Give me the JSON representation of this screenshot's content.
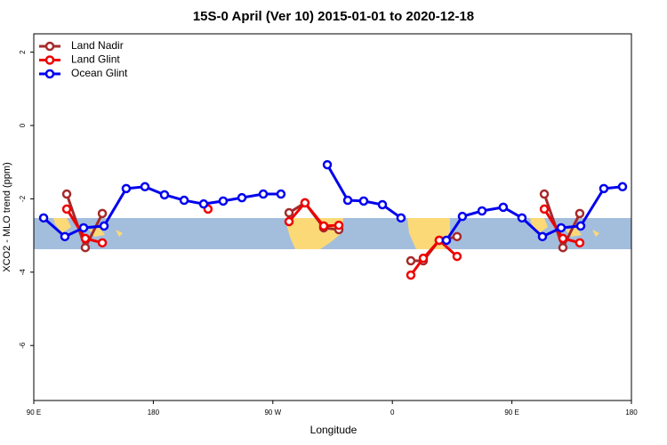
{
  "chart_data": {
    "type": "line",
    "title": "15S-0 April (Ver 10)   2015-01-01 to 2020-12-18",
    "x_label": "Longitude",
    "y_label": "XCO2 - MLO trend (ppm)",
    "xlim": [
      90,
      540
    ],
    "xticks": [
      {
        "value": 90,
        "label": "90 E"
      },
      180,
      {
        "value": 270,
        "label": "90 W"
      },
      {
        "value": 360,
        "label": "0"
      },
      {
        "value": 450,
        "label": "90 E"
      },
      {
        "value": 540,
        "label": "180"
      }
    ],
    "ylim": [
      -7.5,
      2.5
    ],
    "yticks": [
      2,
      0,
      -2,
      -4,
      -6
    ],
    "legend": "top-left",
    "series": [
      {
        "name": "Land Nadir",
        "color": "#a52a2a",
        "x": [
          114.8,
          128.8,
          141.6,
          null,
          282.2,
          294.2,
          308.3,
          319.7,
          null,
          373.9,
          383.3,
          395.3,
          408.7,
          null,
          474.4,
          488.4,
          501.1
        ],
        "values": [
          -1.87,
          -3.33,
          -2.4,
          null,
          -2.38,
          -2.11,
          -2.79,
          -2.84,
          null,
          -3.69,
          -3.69,
          -3.13,
          -3.03,
          null,
          -1.87,
          -3.33,
          -2.4
        ]
      },
      {
        "name": "Land Glint",
        "color": "#ee0000",
        "x": [
          114.8,
          128.8,
          141.6,
          null,
          221.2,
          null,
          282.2,
          294.2,
          308.3,
          319.7,
          null,
          373.9,
          383.3,
          395.3,
          408.7,
          null,
          474.4,
          488.4,
          501.1
        ],
        "values": [
          -2.28,
          -3.08,
          -3.2,
          null,
          -2.28,
          null,
          -2.62,
          -2.11,
          -2.74,
          -2.72,
          null,
          -4.08,
          -3.62,
          -3.13,
          -3.57,
          null,
          -2.28,
          -3.08,
          -3.2
        ]
      },
      {
        "name": "Ocean Glint",
        "color": "#0000ee",
        "x": [
          97.4,
          113.4,
          127.5,
          142.9,
          159.6,
          173.7,
          188.4,
          203.2,
          217.9,
          232.6,
          246.7,
          262.8,
          276.1,
          null,
          311.0,
          326.4,
          338.4,
          352.5,
          366.5,
          null,
          400.7,
          412.7,
          427.5,
          443.5,
          457.6,
          473.0,
          487.1,
          501.8,
          519.2,
          533.3
        ],
        "values": [
          -2.52,
          -3.03,
          -2.79,
          -2.74,
          -1.72,
          -1.67,
          -1.89,
          -2.04,
          -2.14,
          -2.06,
          -1.97,
          -1.87,
          -1.87,
          null,
          -1.07,
          -2.04,
          -2.06,
          -2.16,
          -2.52,
          null,
          -3.13,
          -2.48,
          -2.33,
          -2.23,
          -2.52,
          -3.03,
          -2.79,
          -2.74,
          -1.72,
          -1.67
        ]
      }
    ]
  }
}
